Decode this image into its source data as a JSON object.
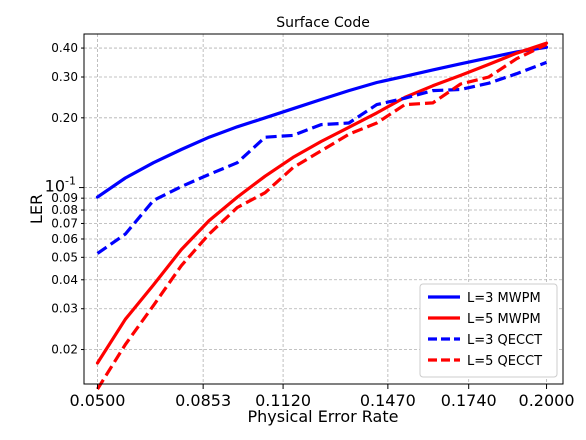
{
  "chart_data": {
    "type": "line",
    "title": "Surface Code",
    "xlabel": "Physical Error Rate",
    "ylabel": "LER",
    "x_scale": "linear",
    "y_scale": "log",
    "xlim": [
      0.0455,
      0.2055
    ],
    "ylim": [
      0.0142,
      0.46
    ],
    "grid": true,
    "grid_style": "dashed",
    "legend_position": "bottom-right",
    "x_ticks": [
      0.05,
      0.0853,
      0.112,
      0.147,
      0.174,
      0.2
    ],
    "x_tick_labels": [
      "0.0500",
      "0.0853",
      "0.1120",
      "0.1470",
      "0.1740",
      "0.2000"
    ],
    "y_major_ticks": [
      0.1
    ],
    "y_major_tick_labels": [
      "10$^{-1}$"
    ],
    "y_minor_ticks": [
      0.02,
      0.03,
      0.04,
      0.05,
      0.06,
      0.07,
      0.08,
      0.09,
      0.2,
      0.3,
      0.4
    ],
    "y_minor_tick_labels": [
      "0.02",
      "0.03",
      "0.04",
      "0.05",
      "0.06",
      "0.07",
      "0.08",
      "0.09",
      "0.20",
      "0.30",
      "0.40"
    ],
    "x": [
      0.05,
      0.0593,
      0.0687,
      0.078,
      0.0873,
      0.0967,
      0.106,
      0.1153,
      0.1247,
      0.134,
      0.1433,
      0.1527,
      0.162,
      0.1713,
      0.1807,
      0.19,
      0.2
    ],
    "series": [
      {
        "name": "L=3 MWPM",
        "color": "#0000ff",
        "linestyle": "solid",
        "values": [
          0.091,
          0.11,
          0.128,
          0.146,
          0.165,
          0.183,
          0.2,
          0.219,
          0.24,
          0.262,
          0.284,
          0.302,
          0.322,
          0.342,
          0.363,
          0.385,
          0.403
        ]
      },
      {
        "name": "L=5 MWPM",
        "color": "#ff0000",
        "linestyle": "solid",
        "values": [
          0.0175,
          0.027,
          0.038,
          0.054,
          0.072,
          0.091,
          0.112,
          0.135,
          0.158,
          0.182,
          0.21,
          0.245,
          0.275,
          0.305,
          0.34,
          0.38,
          0.42
        ]
      },
      {
        "name": "L=3 QECCT",
        "color": "#0000ff",
        "linestyle": "dashed",
        "values": [
          0.052,
          0.063,
          0.088,
          0.101,
          0.114,
          0.128,
          0.165,
          0.168,
          0.187,
          0.19,
          0.228,
          0.243,
          0.262,
          0.265,
          0.282,
          0.31,
          0.347
        ]
      },
      {
        "name": "L=5 QECCT",
        "color": "#ff0000",
        "linestyle": "dashed",
        "values": [
          0.0135,
          0.021,
          0.031,
          0.046,
          0.063,
          0.082,
          0.095,
          0.122,
          0.144,
          0.17,
          0.19,
          0.228,
          0.232,
          0.28,
          0.3,
          0.36,
          0.415
        ]
      }
    ]
  }
}
